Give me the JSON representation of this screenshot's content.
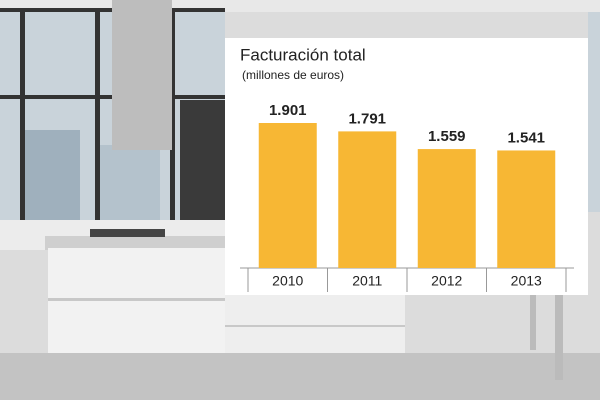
{
  "chart_data": {
    "type": "bar",
    "title": "Facturación total",
    "subtitle": "(millones de euros)",
    "categories": [
      "2010",
      "2011",
      "2012",
      "2013"
    ],
    "values": [
      1901,
      1791,
      1559,
      1541
    ],
    "value_labels": [
      "1.901",
      "1.791",
      "1.559",
      "1.541"
    ],
    "color": "#f7b734"
  }
}
